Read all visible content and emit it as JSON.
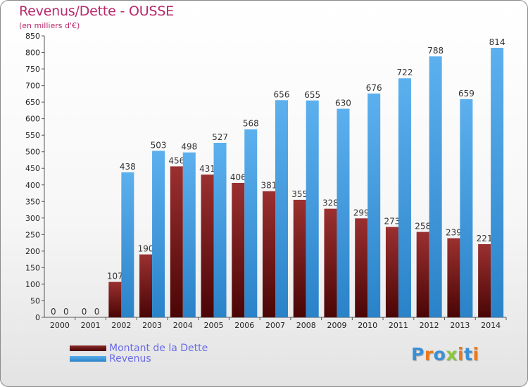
{
  "header": {
    "title": "Revenus/Dette - OUSSE",
    "subtitle": "(en milliers d'€)"
  },
  "legend": {
    "debt_label": "Montant de la Dette",
    "revenue_label": "Revenus"
  },
  "logo": {
    "text": "Proxiti",
    "letter_colors": [
      "#3a8fd6",
      "#e87a1e",
      "#3a8fd6",
      "#8cc63f",
      "#e87a1e",
      "#3a8fd6",
      "#e87a1e"
    ]
  },
  "colors": {
    "debt": "#7a1a1a",
    "revenue": "#4aa3e6",
    "title": "#b8286a",
    "legend_text": "#6a6ae8"
  },
  "chart_data": {
    "type": "bar",
    "categories": [
      "2000",
      "2001",
      "2002",
      "2003",
      "2004",
      "2005",
      "2006",
      "2007",
      "2008",
      "2009",
      "2010",
      "2011",
      "2012",
      "2013",
      "2014"
    ],
    "series": [
      {
        "name": "Montant de la Dette",
        "values": [
          0,
          0,
          107,
          190,
          456,
          431,
          406,
          381,
          355,
          328,
          299,
          273,
          258,
          239,
          221
        ]
      },
      {
        "name": "Revenus",
        "values": [
          0,
          0,
          438,
          503,
          498,
          527,
          568,
          656,
          655,
          630,
          676,
          722,
          788,
          659,
          814
        ]
      }
    ],
    "ylim": [
      0,
      850
    ],
    "yticks": [
      0,
      50,
      100,
      150,
      200,
      250,
      300,
      350,
      400,
      450,
      500,
      550,
      600,
      650,
      700,
      750,
      800,
      850
    ],
    "grid": false,
    "legend_position": "bottom-left"
  }
}
